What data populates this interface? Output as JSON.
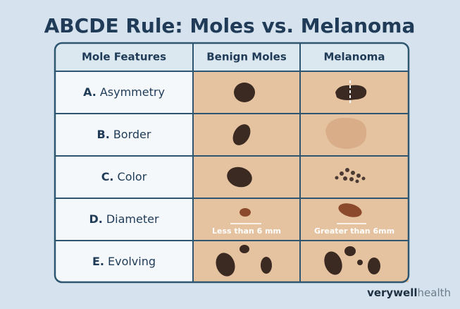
{
  "title": "ABCDE Rule: Moles vs. Melanoma",
  "table": {
    "headers": [
      "Mole Features",
      "Benign Moles",
      "Melanoma"
    ],
    "rows": [
      {
        "letter": "A.",
        "feature": "Asymmetry"
      },
      {
        "letter": "B.",
        "feature": "Border"
      },
      {
        "letter": "C.",
        "feature": "Color"
      },
      {
        "letter": "D.",
        "feature": "Diameter"
      },
      {
        "letter": "E.",
        "feature": "Evolving"
      }
    ],
    "annotations": {
      "benign_diameter": "Less than 6 mm",
      "melanoma_diameter": "Greater than 6mm"
    }
  },
  "brand": {
    "primary": "verywell",
    "secondary": "health"
  }
}
